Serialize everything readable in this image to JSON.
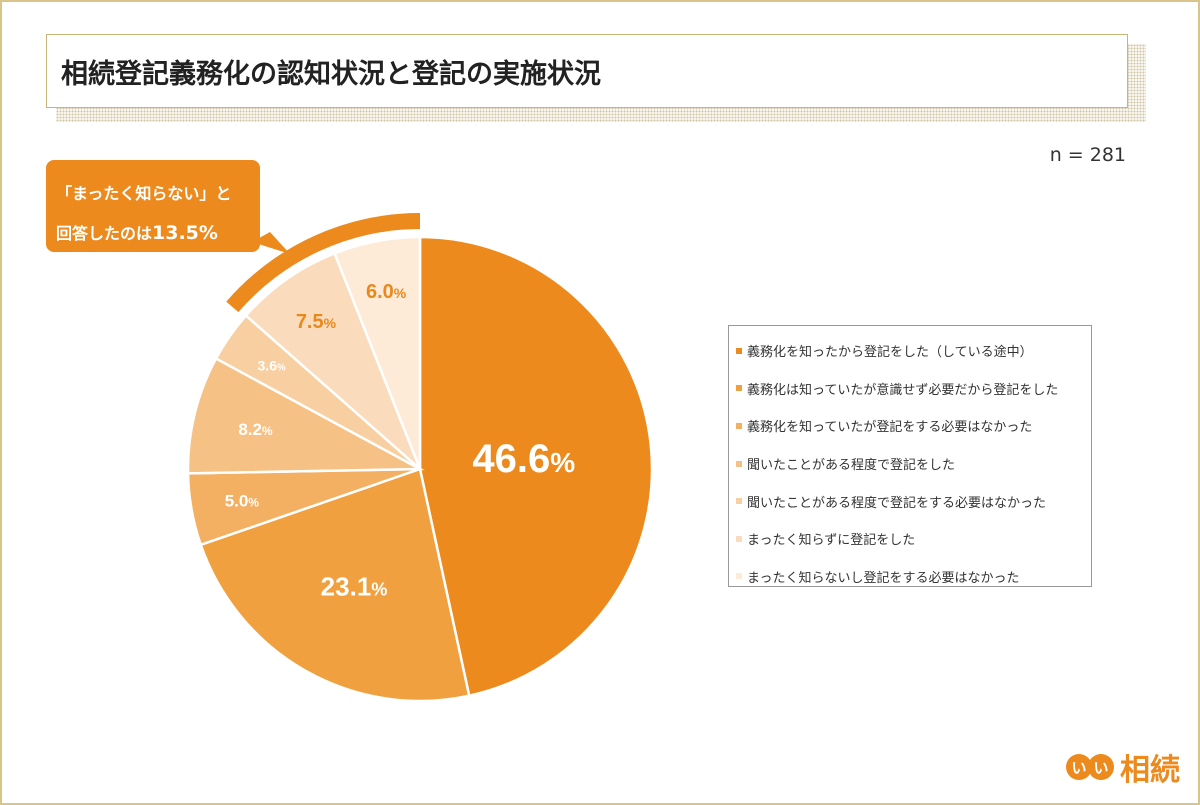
{
  "chart_data": {
    "type": "pie",
    "title": "相続登記義務化の認知状況と登記の実施状況",
    "sample_size": "n = 281",
    "categories": [
      "義務化を知ったから登記をした（している途中）",
      "義務化は知っていたが意識せず必要だから登記をした",
      "義務化を知っていたが登記をする必要はなかった",
      "聞いたことがある程度で登記をした",
      "聞いたことがある程度で登記をする必要はなかった",
      "まったく知らずに登記をした",
      "まったく知らないし登記をする必要はなかった"
    ],
    "values": [
      46.6,
      23.1,
      5.0,
      8.2,
      3.6,
      7.5,
      6.0
    ],
    "labels": [
      "46.6",
      "23.1",
      "5.0",
      "8.2",
      "3.6",
      "7.5",
      "6.0"
    ],
    "unit": "%",
    "colors": [
      "#ec8a1d",
      "#f1a03f",
      "#f3b063",
      "#f6c184",
      "#f8cfa0",
      "#fadcbc",
      "#fdebd8"
    ],
    "label_colors": [
      "#ffffff",
      "#ffffff",
      "#ffffff",
      "#ffffff",
      "#ffffff",
      "#e8891f",
      "#e8891f"
    ],
    "start": "12 o'clock, clockwise",
    "legend_position": "right",
    "annotation": {
      "line1": "「まったく知らない」と",
      "line2_prefix": "回答したのは",
      "line2_value": "13.5%",
      "highlights": [
        5,
        6
      ]
    }
  },
  "logo": {
    "mark": "いい",
    "text": "相続",
    "color": "#ec8a1d"
  }
}
